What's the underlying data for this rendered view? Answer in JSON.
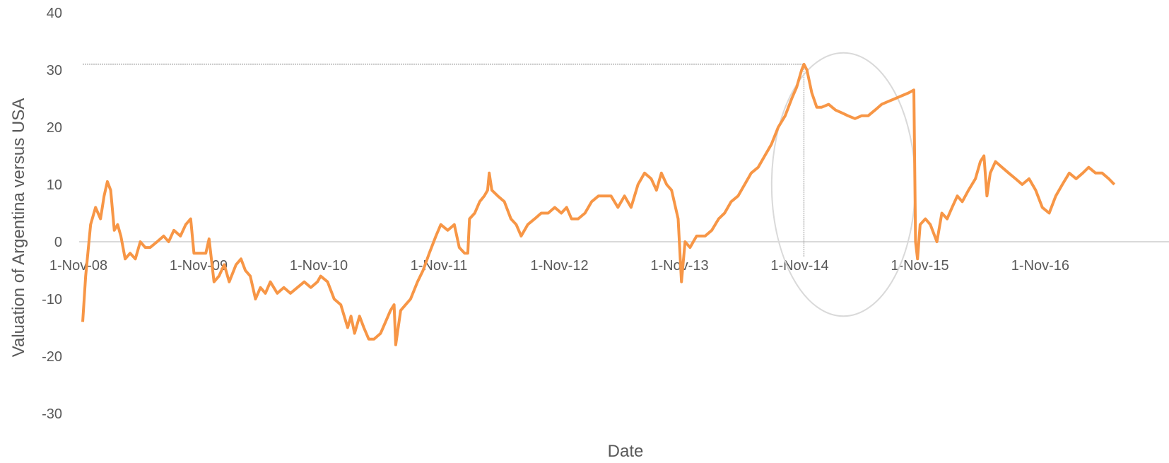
{
  "chart_data": {
    "type": "line",
    "title": "",
    "xlabel": "Date",
    "ylabel": "Valuation of Argentina versus USA",
    "ylim": [
      -30,
      40
    ],
    "y_ticks": [
      -30,
      -20,
      -10,
      0,
      10,
      20,
      30,
      40
    ],
    "y_tick_labels": [
      "-30",
      "-20",
      "-10",
      "0",
      "10",
      "20",
      "30",
      "40"
    ],
    "x_tick_dates": [
      "2008-11-01",
      "2009-11-01",
      "2010-11-01",
      "2011-11-01",
      "2012-11-01",
      "2013-11-01",
      "2014-11-01",
      "2015-11-01",
      "2016-11-01"
    ],
    "x_tick_labels": [
      "1-Nov-08",
      "1-Nov-09",
      "1-Nov-10",
      "1-Nov-11",
      "1-Nov-12",
      "1-Nov-13",
      "1-Nov-14",
      "1-Nov-15",
      "1-Nov-16"
    ],
    "xlim": [
      "2008-11-01",
      "2017-06-01"
    ],
    "grid": false,
    "legend": "none",
    "line_color": "#F79646",
    "reference_line_color": "#A6A6A6",
    "circle_color": "#D9D9D9",
    "annotations": {
      "peak_date": "2014-11-01",
      "peak_value": 31,
      "circle_center": {
        "date": "2015-03-01",
        "value": 10
      },
      "circle_rx_days": 218,
      "circle_ry_value": 23
    },
    "series": [
      {
        "points": [
          [
            "2008-11-01",
            -14
          ],
          [
            "2008-11-10",
            -6
          ],
          [
            "2008-11-25",
            3
          ],
          [
            "2008-12-10",
            6
          ],
          [
            "2008-12-25",
            4
          ],
          [
            "2009-01-05",
            8
          ],
          [
            "2009-01-15",
            10.5
          ],
          [
            "2009-01-25",
            9
          ],
          [
            "2009-02-05",
            2
          ],
          [
            "2009-02-15",
            3
          ],
          [
            "2009-02-25",
            1
          ],
          [
            "2009-03-10",
            -3
          ],
          [
            "2009-03-25",
            -2
          ],
          [
            "2009-04-10",
            -3
          ],
          [
            "2009-04-25",
            0
          ],
          [
            "2009-05-10",
            -1
          ],
          [
            "2009-05-25",
            -1
          ],
          [
            "2009-06-15",
            0
          ],
          [
            "2009-07-05",
            1
          ],
          [
            "2009-07-20",
            0
          ],
          [
            "2009-08-05",
            2
          ],
          [
            "2009-08-25",
            1
          ],
          [
            "2009-09-10",
            3
          ],
          [
            "2009-09-25",
            4
          ],
          [
            "2009-10-05",
            -2
          ],
          [
            "2009-10-25",
            -2
          ],
          [
            "2009-11-10",
            -2
          ],
          [
            "2009-11-20",
            0.5
          ],
          [
            "2009-12-05",
            -7
          ],
          [
            "2009-12-20",
            -6
          ],
          [
            "2010-01-05",
            -4
          ],
          [
            "2010-01-20",
            -7
          ],
          [
            "2010-02-10",
            -4
          ],
          [
            "2010-02-25",
            -3
          ],
          [
            "2010-03-10",
            -5
          ],
          [
            "2010-03-25",
            -6
          ],
          [
            "2010-04-10",
            -10
          ],
          [
            "2010-04-25",
            -8
          ],
          [
            "2010-05-10",
            -9
          ],
          [
            "2010-05-25",
            -7
          ],
          [
            "2010-06-15",
            -9
          ],
          [
            "2010-07-05",
            -8
          ],
          [
            "2010-07-25",
            -9
          ],
          [
            "2010-08-15",
            -8
          ],
          [
            "2010-09-05",
            -7
          ],
          [
            "2010-09-25",
            -8
          ],
          [
            "2010-10-15",
            -7
          ],
          [
            "2010-10-25",
            -6
          ],
          [
            "2010-11-15",
            -7
          ],
          [
            "2010-12-05",
            -10
          ],
          [
            "2010-12-25",
            -11
          ],
          [
            "2011-01-15",
            -15
          ],
          [
            "2011-01-25",
            -13
          ],
          [
            "2011-02-05",
            -16
          ],
          [
            "2011-02-20",
            -13
          ],
          [
            "2011-03-05",
            -15
          ],
          [
            "2011-03-20",
            -17
          ],
          [
            "2011-04-05",
            -17
          ],
          [
            "2011-04-25",
            -16
          ],
          [
            "2011-05-10",
            -14
          ],
          [
            "2011-05-25",
            -12
          ],
          [
            "2011-06-05",
            -11
          ],
          [
            "2011-06-10",
            -18
          ],
          [
            "2011-06-25",
            -12
          ],
          [
            "2011-07-10",
            -11
          ],
          [
            "2011-07-25",
            -10
          ],
          [
            "2011-08-15",
            -7
          ],
          [
            "2011-09-01",
            -5
          ],
          [
            "2011-09-20",
            -2
          ],
          [
            "2011-10-10",
            1
          ],
          [
            "2011-10-25",
            3
          ],
          [
            "2011-11-15",
            2
          ],
          [
            "2011-12-05",
            3
          ],
          [
            "2011-12-20",
            -1
          ],
          [
            "2012-01-05",
            -2
          ],
          [
            "2012-01-15",
            -2
          ],
          [
            "2012-01-20",
            4
          ],
          [
            "2012-02-05",
            5
          ],
          [
            "2012-02-20",
            7
          ],
          [
            "2012-03-05",
            8
          ],
          [
            "2012-03-15",
            9
          ],
          [
            "2012-03-20",
            12
          ],
          [
            "2012-03-28",
            9
          ],
          [
            "2012-04-15",
            8
          ],
          [
            "2012-05-05",
            7
          ],
          [
            "2012-05-25",
            4
          ],
          [
            "2012-06-10",
            3
          ],
          [
            "2012-06-25",
            1
          ],
          [
            "2012-07-15",
            3
          ],
          [
            "2012-08-05",
            4
          ],
          [
            "2012-08-25",
            5
          ],
          [
            "2012-09-15",
            5
          ],
          [
            "2012-10-05",
            6
          ],
          [
            "2012-10-25",
            5
          ],
          [
            "2012-11-10",
            6
          ],
          [
            "2012-11-25",
            4
          ],
          [
            "2012-12-15",
            4
          ],
          [
            "2013-01-05",
            5
          ],
          [
            "2013-01-25",
            7
          ],
          [
            "2013-02-15",
            8
          ],
          [
            "2013-03-05",
            8
          ],
          [
            "2013-03-25",
            8
          ],
          [
            "2013-04-15",
            6
          ],
          [
            "2013-05-05",
            8
          ],
          [
            "2013-05-25",
            6
          ],
          [
            "2013-06-15",
            10
          ],
          [
            "2013-07-05",
            12
          ],
          [
            "2013-07-25",
            11
          ],
          [
            "2013-08-10",
            9
          ],
          [
            "2013-08-25",
            12
          ],
          [
            "2013-09-10",
            10
          ],
          [
            "2013-09-25",
            9
          ],
          [
            "2013-10-15",
            4
          ],
          [
            "2013-10-25",
            -7
          ],
          [
            "2013-11-05",
            0
          ],
          [
            "2013-11-20",
            -1
          ],
          [
            "2013-12-10",
            1
          ],
          [
            "2014-01-05",
            1
          ],
          [
            "2014-01-25",
            2
          ],
          [
            "2014-02-15",
            4
          ],
          [
            "2014-03-05",
            5
          ],
          [
            "2014-03-25",
            7
          ],
          [
            "2014-04-15",
            8
          ],
          [
            "2014-05-05",
            10
          ],
          [
            "2014-05-25",
            12
          ],
          [
            "2014-06-15",
            13
          ],
          [
            "2014-07-05",
            15
          ],
          [
            "2014-07-25",
            17
          ],
          [
            "2014-08-15",
            20
          ],
          [
            "2014-09-05",
            22
          ],
          [
            "2014-09-25",
            25
          ],
          [
            "2014-10-10",
            27
          ],
          [
            "2014-10-25",
            30
          ],
          [
            "2014-11-01",
            31
          ],
          [
            "2014-11-10",
            30
          ],
          [
            "2014-11-25",
            26
          ],
          [
            "2014-12-10",
            23.5
          ],
          [
            "2014-12-25",
            23.5
          ],
          [
            "2015-01-15",
            24
          ],
          [
            "2015-02-05",
            23
          ],
          [
            "2015-02-25",
            22.5
          ],
          [
            "2015-03-15",
            22
          ],
          [
            "2015-04-05",
            21.5
          ],
          [
            "2015-04-25",
            22
          ],
          [
            "2015-05-15",
            22
          ],
          [
            "2015-06-05",
            23
          ],
          [
            "2015-06-25",
            24
          ],
          [
            "2015-07-15",
            24.5
          ],
          [
            "2015-08-05",
            25
          ],
          [
            "2015-08-25",
            25.5
          ],
          [
            "2015-09-15",
            26
          ],
          [
            "2015-10-01",
            26.5
          ],
          [
            "2015-10-06",
            0
          ],
          [
            "2015-10-12",
            -3
          ],
          [
            "2015-10-20",
            3
          ],
          [
            "2015-11-05",
            4
          ],
          [
            "2015-11-20",
            3
          ],
          [
            "2015-12-10",
            0
          ],
          [
            "2015-12-25",
            5
          ],
          [
            "2016-01-10",
            4
          ],
          [
            "2016-01-25",
            6
          ],
          [
            "2016-02-10",
            8
          ],
          [
            "2016-02-25",
            7
          ],
          [
            "2016-03-15",
            9
          ],
          [
            "2016-04-05",
            11
          ],
          [
            "2016-04-20",
            14
          ],
          [
            "2016-05-01",
            15
          ],
          [
            "2016-05-10",
            8
          ],
          [
            "2016-05-20",
            12
          ],
          [
            "2016-06-05",
            14
          ],
          [
            "2016-06-25",
            13
          ],
          [
            "2016-07-15",
            12
          ],
          [
            "2016-08-05",
            11
          ],
          [
            "2016-08-25",
            10
          ],
          [
            "2016-09-15",
            11
          ],
          [
            "2016-10-05",
            9
          ],
          [
            "2016-10-25",
            6
          ],
          [
            "2016-11-15",
            5
          ],
          [
            "2016-12-05",
            8
          ],
          [
            "2016-12-25",
            10
          ],
          [
            "2017-01-15",
            12
          ],
          [
            "2017-02-05",
            11
          ],
          [
            "2017-02-25",
            12
          ],
          [
            "2017-03-15",
            13
          ],
          [
            "2017-04-05",
            12
          ],
          [
            "2017-04-25",
            12
          ],
          [
            "2017-05-15",
            11
          ],
          [
            "2017-06-01",
            10
          ]
        ]
      }
    ]
  }
}
